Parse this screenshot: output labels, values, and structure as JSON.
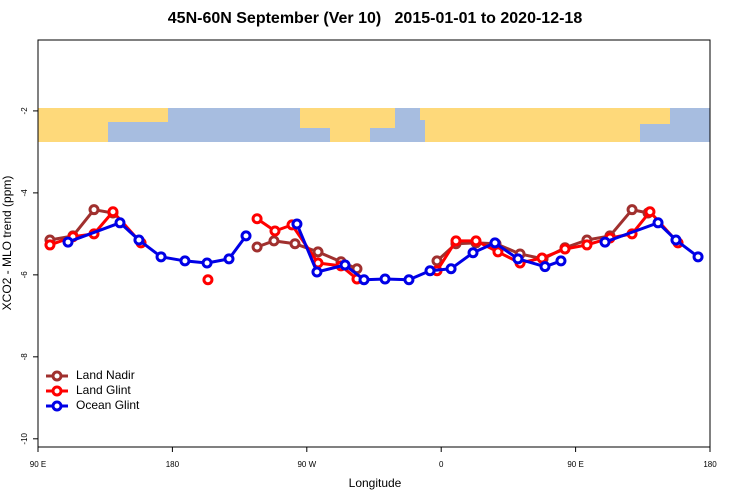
{
  "chart_data": {
    "type": "line",
    "title": "45N-60N September (Ver 10)   2015-01-01 to 2020-12-18",
    "xlabel": "Longitude",
    "ylabel": "XCO2 - MLO trend (ppm)",
    "xlim": [
      90,
      540
    ],
    "xticks": [
      {
        "value": 90,
        "label": "90 E"
      },
      180,
      {
        "value": 270,
        "label": "90 W"
      },
      {
        "value": 360,
        "label": "0"
      },
      {
        "value": 450,
        "label": "90 E"
      },
      {
        "value": 540,
        "label": "180"
      }
    ],
    "ylim": [
      -10.2,
      -0.27
    ],
    "yticks": [
      -2,
      -4,
      -6,
      -8,
      -10
    ],
    "legend": "lower left",
    "series": [
      {
        "name": "Land Nadir",
        "color": "#a0302e",
        "x": [
          98.0,
          113.4,
          127.5,
          140.2,
          null,
          236.7,
          248.0,
          262.1,
          277.5,
          292.9,
          303.6,
          null,
          357.2,
          369.9,
          383.3,
          396.7,
          412.8,
          428.2,
          442.9,
          457.6,
          473.0,
          487.8,
          498.5
        ],
        "values": [
          -5.15,
          -5.05,
          -4.41,
          -4.49,
          null,
          -5.32,
          -5.17,
          -5.24,
          -5.44,
          -5.68,
          -5.85,
          null,
          -5.66,
          -5.24,
          -5.22,
          -5.24,
          -5.49,
          -5.61,
          -5.34,
          -5.15,
          -5.05,
          -4.41,
          -4.49
        ]
      },
      {
        "name": "Land Glint",
        "color": "#ff0000",
        "x": [
          98.0,
          113.4,
          127.5,
          140.2,
          159.0,
          null,
          203.8,
          null,
          236.7,
          248.7,
          260.1,
          277.5,
          292.9,
          303.6,
          null,
          357.2,
          369.9,
          383.3,
          398.0,
          412.8,
          427.5,
          442.9,
          457.6,
          473.0,
          487.8,
          499.8,
          518.6
        ],
        "values": [
          -5.27,
          -5.07,
          -5.0,
          -4.46,
          -5.22,
          null,
          -6.12,
          null,
          -4.63,
          -4.93,
          -4.78,
          -5.71,
          -5.78,
          -6.1,
          null,
          -5.9,
          -5.17,
          -5.17,
          -5.44,
          -5.71,
          -5.59,
          -5.37,
          -5.27,
          -5.1,
          -5.0,
          -4.46,
          -5.22
        ]
      },
      {
        "name": "Ocean Glint",
        "color": "#0000e6",
        "x": [
          110.1,
          144.9,
          157.6,
          172.4,
          188.4,
          203.2,
          217.9,
          229.3,
          null,
          263.4,
          276.8,
          295.6,
          308.3,
          322.4,
          338.4,
          352.5,
          366.6,
          381.3,
          396.0,
          411.4,
          429.5,
          440.2,
          null,
          469.7,
          505.2,
          517.2,
          532.0
        ],
        "values": [
          -5.2,
          -4.73,
          -5.15,
          -5.56,
          -5.66,
          -5.71,
          -5.61,
          -5.05,
          null,
          -4.76,
          -5.93,
          -5.76,
          -6.12,
          -6.1,
          -6.12,
          -5.9,
          -5.85,
          -5.46,
          -5.22,
          -5.61,
          -5.8,
          -5.66,
          null,
          -5.2,
          -4.73,
          -5.15,
          -5.56
        ]
      }
    ]
  }
}
